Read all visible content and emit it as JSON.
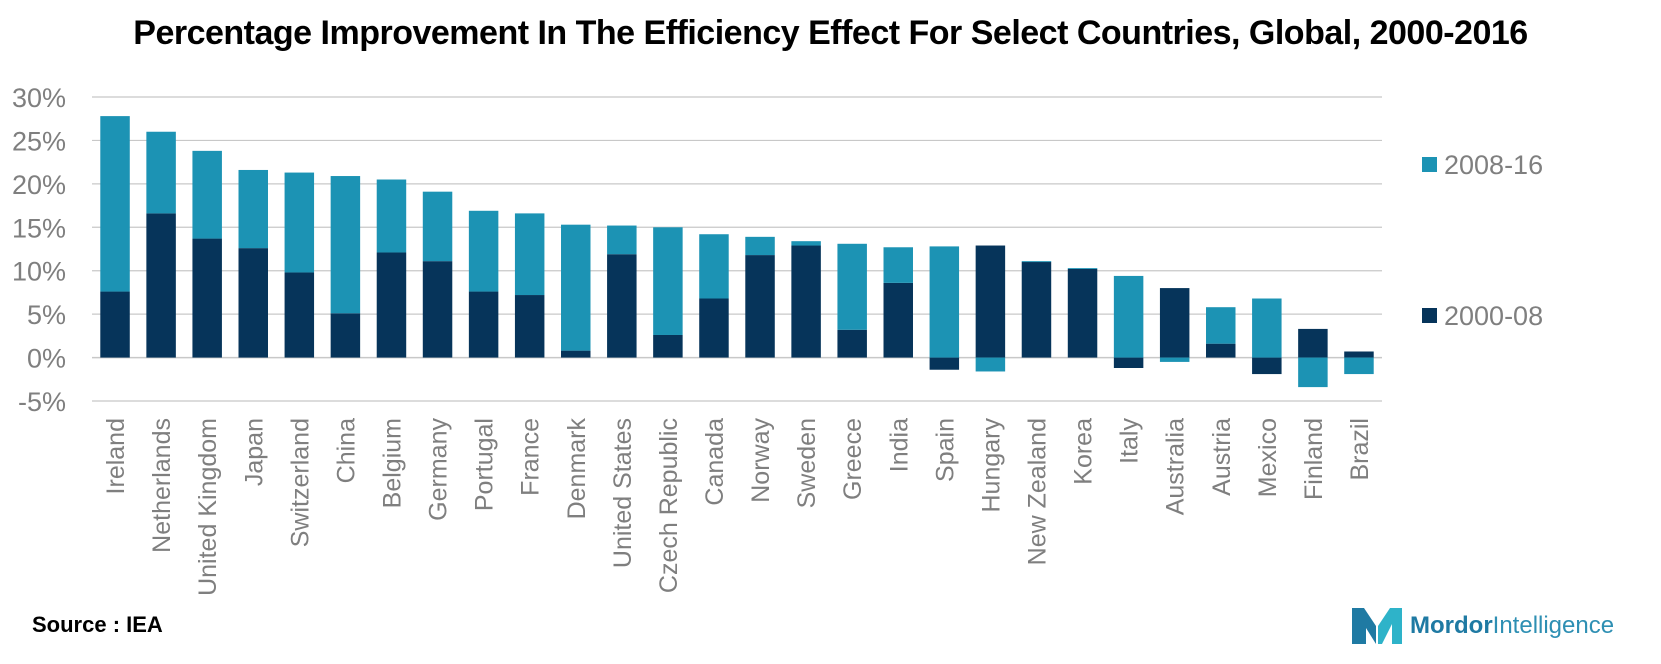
{
  "title": "Percentage Improvement In The Efficiency Effect For Select Countries, Global, 2000-2016",
  "source": "Source : IEA",
  "logo": {
    "brand_bold": "Mordor",
    "brand_regular": "Intelligence"
  },
  "colors": {
    "series_2000_08": "#06345a",
    "series_2008_16": "#1c93b4",
    "grid": "#c8c8c8",
    "axis_text": "#7f7f7f"
  },
  "chart_data": {
    "type": "bar",
    "stacked": true,
    "title": "Percentage Improvement In The Efficiency Effect For Select Countries, Global, 2000-2016",
    "xlabel": "",
    "ylabel": "",
    "ylim": [
      -5,
      30
    ],
    "yticks": [
      -5,
      0,
      5,
      10,
      15,
      20,
      25,
      30
    ],
    "ytick_labels": [
      "-5%",
      "0%",
      "5%",
      "10%",
      "15%",
      "20%",
      "25%",
      "30%"
    ],
    "grid": true,
    "legend_position": "right",
    "categories": [
      "Ireland",
      "Netherlands",
      "United Kingdom",
      "Japan",
      "Switzerland",
      "China",
      "Belgium",
      "Germany",
      "Portugal",
      "France",
      "Denmark",
      "United States",
      "Czech Republic",
      "Canada",
      "Norway",
      "Sweden",
      "Greece",
      "India",
      "Spain",
      "Hungary",
      "New Zealand",
      "Korea",
      "Italy",
      "Australia",
      "Austria",
      "Mexico",
      "Finland",
      "Brazil"
    ],
    "series": [
      {
        "name": "2000-08",
        "color": "#06345a",
        "values": [
          7.6,
          16.6,
          13.7,
          12.6,
          9.8,
          5.1,
          12.1,
          11.1,
          7.6,
          7.2,
          0.8,
          11.9,
          2.6,
          6.8,
          11.8,
          12.9,
          3.2,
          8.6,
          -1.4,
          12.9,
          11.0,
          10.2,
          -1.2,
          8.0,
          1.6,
          -1.9,
          3.3,
          0.7
        ]
      },
      {
        "name": "2008-16",
        "color": "#1c93b4",
        "values": [
          20.2,
          9.4,
          10.1,
          9.0,
          11.5,
          15.8,
          8.4,
          8.0,
          9.3,
          9.4,
          14.5,
          3.3,
          12.4,
          7.4,
          2.1,
          0.5,
          9.9,
          4.1,
          12.8,
          -1.6,
          0.1,
          0.1,
          9.4,
          -0.5,
          4.2,
          6.8,
          -3.4,
          -1.9
        ]
      }
    ]
  }
}
